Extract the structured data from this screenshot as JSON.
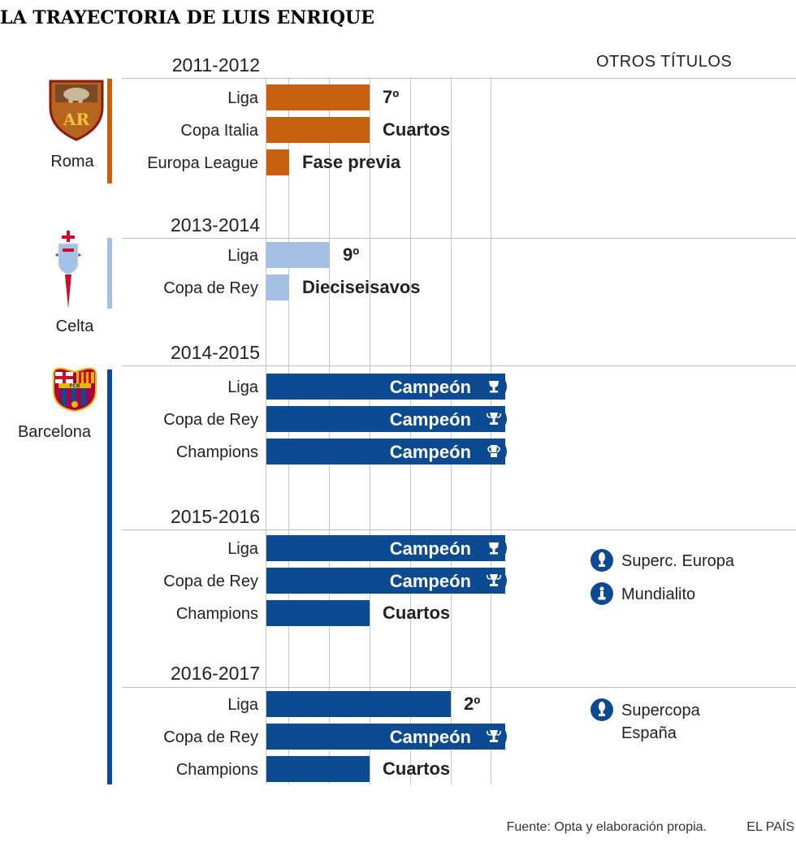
{
  "title": "LA TRAYECTORIA DE LUIS ENRIQUE",
  "header_other_titles": "OTROS TÍTULOS",
  "source": "Fuente: Opta y elaboración propia.",
  "brand": "EL PAÍS",
  "colors": {
    "roma": "#c8600f",
    "celta": "#a3bfe2",
    "barcelona": "#0c4a92",
    "grid": "#c8c8c8"
  },
  "clubs": [
    {
      "name": "Roma",
      "badge": "roma-badge",
      "color": "#c8600f"
    },
    {
      "name": "Celta",
      "badge": "celta-badge",
      "color": "#a3bfe2"
    },
    {
      "name": "Barcelona",
      "badge": "barcelona-badge",
      "color": "#0c4a92"
    }
  ],
  "chart_data": {
    "type": "bar",
    "scale_note": "bar length reflects how far the team progressed in each competition",
    "seasons": [
      {
        "season": "2011-2012",
        "club": "Roma",
        "competitions": [
          {
            "name": "Liga",
            "result": "7º",
            "trophy": false
          },
          {
            "name": "Copa Italia",
            "result": "Cuartos",
            "trophy": false
          },
          {
            "name": "Europa League",
            "result": "Fase previa",
            "trophy": false
          }
        ],
        "other_titles": []
      },
      {
        "season": "2013-2014",
        "club": "Celta",
        "competitions": [
          {
            "name": "Liga",
            "result": "9º",
            "trophy": false
          },
          {
            "name": "Copa de Rey",
            "result": "Dieciseisavos",
            "trophy": false
          }
        ],
        "other_titles": []
      },
      {
        "season": "2014-2015",
        "club": "Barcelona",
        "competitions": [
          {
            "name": "Liga",
            "result": "Campeón",
            "trophy": true,
            "trophy_icon": "league-trophy-icon"
          },
          {
            "name": "Copa de Rey",
            "result": "Campeón",
            "trophy": true,
            "trophy_icon": "cup-trophy-icon"
          },
          {
            "name": "Champions",
            "result": "Campeón",
            "trophy": true,
            "trophy_icon": "champions-trophy-icon"
          }
        ],
        "other_titles": []
      },
      {
        "season": "2015-2016",
        "club": "Barcelona",
        "competitions": [
          {
            "name": "Liga",
            "result": "Campeón",
            "trophy": true,
            "trophy_icon": "league-trophy-icon"
          },
          {
            "name": "Copa de Rey",
            "result": "Campeón",
            "trophy": true,
            "trophy_icon": "cup-trophy-icon"
          },
          {
            "name": "Champions",
            "result": "Cuartos",
            "trophy": false
          }
        ],
        "other_titles": [
          {
            "lines": [
              "Superc. Europa"
            ],
            "icon": "supercup-trophy-icon"
          },
          {
            "lines": [
              "Mundialito"
            ],
            "icon": "club-world-cup-trophy-icon"
          }
        ]
      },
      {
        "season": "2016-2017",
        "club": "Barcelona",
        "competitions": [
          {
            "name": "Liga",
            "result": "2º",
            "trophy": false
          },
          {
            "name": "Copa de Rey",
            "result": "Campeón",
            "trophy": true,
            "trophy_icon": "cup-trophy-icon"
          },
          {
            "name": "Champions",
            "result": "Cuartos",
            "trophy": false
          }
        ],
        "other_titles": [
          {
            "lines": [
              "Supercopa",
              "España"
            ],
            "icon": "supercup-trophy-icon"
          }
        ]
      }
    ]
  }
}
